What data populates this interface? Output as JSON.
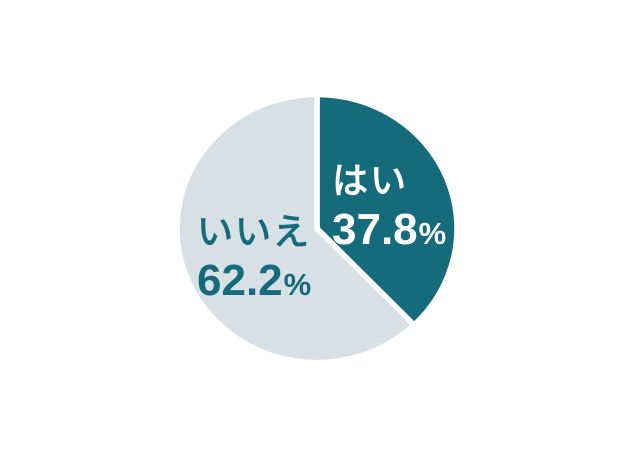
{
  "chart_data": {
    "type": "pie",
    "title": "",
    "categories": [
      "はい",
      "いいえ"
    ],
    "values": [
      37.8,
      62.2
    ],
    "slices": [
      {
        "label": "はい",
        "value": 37.8,
        "value_text": "37.8",
        "unit": "%",
        "color": "#156A7C",
        "label_text_color": "#FFFFFF"
      },
      {
        "label": "いいえ",
        "value": 62.2,
        "value_text": "62.2",
        "unit": "%",
        "color": "#D7E0E4",
        "label_text_color": "#156A7C"
      }
    ],
    "start_angle_deg": 0,
    "direction": "clockwise",
    "legend_position": "inside-slices",
    "background_color": "#FFFFFF",
    "slice_separator_color": "#FFFFFF"
  }
}
